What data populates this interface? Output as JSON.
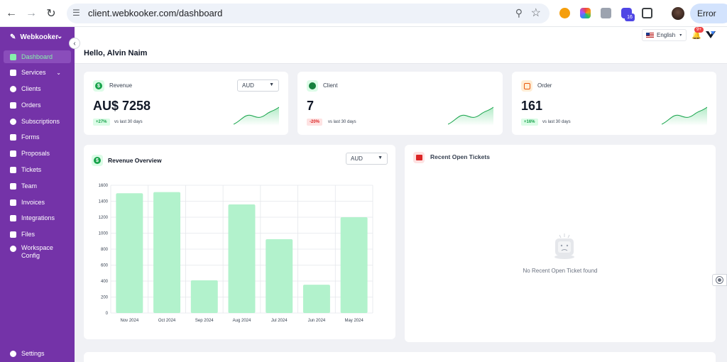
{
  "browser": {
    "url": "client.webkooker.com/dashboard",
    "profile_label": "Error",
    "extension_badge": "16"
  },
  "sidebar": {
    "brand": "Webkooker",
    "items": [
      {
        "label": "Dashboard",
        "icon": "grid-icon",
        "active": true
      },
      {
        "label": "Services",
        "icon": "box-icon",
        "has_submenu": true
      },
      {
        "label": "Clients",
        "icon": "users-icon"
      },
      {
        "label": "Orders",
        "icon": "clipboard-icon"
      },
      {
        "label": "Subscriptions",
        "icon": "refresh-icon"
      },
      {
        "label": "Forms",
        "icon": "file-icon"
      },
      {
        "label": "Proposals",
        "icon": "document-icon"
      },
      {
        "label": "Tickets",
        "icon": "ticket-icon"
      },
      {
        "label": "Team",
        "icon": "team-icon"
      },
      {
        "label": "Invoices",
        "icon": "invoice-icon"
      },
      {
        "label": "Integrations",
        "icon": "plug-icon"
      },
      {
        "label": "Files",
        "icon": "folder-icon"
      },
      {
        "label": "Workspace Config",
        "icon": "gear-icon"
      }
    ],
    "settings_label": "Settings"
  },
  "topbar": {
    "greeting": "Hello, Alvin Naim",
    "language": "English",
    "notification_badge": "9+"
  },
  "stats": [
    {
      "title": "Revenue",
      "value": "AU$ 7258",
      "change": "+27%",
      "trend": "up",
      "period": "vs last 30 days",
      "currency": "AUD",
      "icon": "dollar-icon",
      "icon_color": "#16a34a",
      "icon_bg": "#dcfce7"
    },
    {
      "title": "Client",
      "value": "7",
      "change": "-20%",
      "trend": "down",
      "period": "vs last 30 days",
      "icon": "smile-icon",
      "icon_color": "#15803d",
      "icon_bg": "#dcfce7"
    },
    {
      "title": "Order",
      "value": "161",
      "change": "+16%",
      "trend": "up",
      "period": "vs last 30 days",
      "icon": "order-icon",
      "icon_color": "#ea580c",
      "icon_bg": "#ffedd5"
    }
  ],
  "revenue_overview": {
    "title": "Revenue Overview",
    "currency": "AUD"
  },
  "tickets": {
    "title": "Recent Open Tickets",
    "empty_text": "No Recent Open Ticket found"
  },
  "chart_data": {
    "type": "bar",
    "title": "Revenue Overview",
    "categories": [
      "Nov 2024",
      "Oct 2024",
      "Sep 2024",
      "Aug 2024",
      "Jul 2024",
      "Jun 2024",
      "May 2024"
    ],
    "values": [
      1500,
      1515,
      410,
      1360,
      925,
      355,
      1200
    ],
    "ylim": [
      0,
      1600
    ],
    "yticks": [
      0,
      200,
      400,
      600,
      800,
      1000,
      1200,
      1400,
      1600
    ],
    "grid": true,
    "bar_color": "#b2f2cc"
  }
}
